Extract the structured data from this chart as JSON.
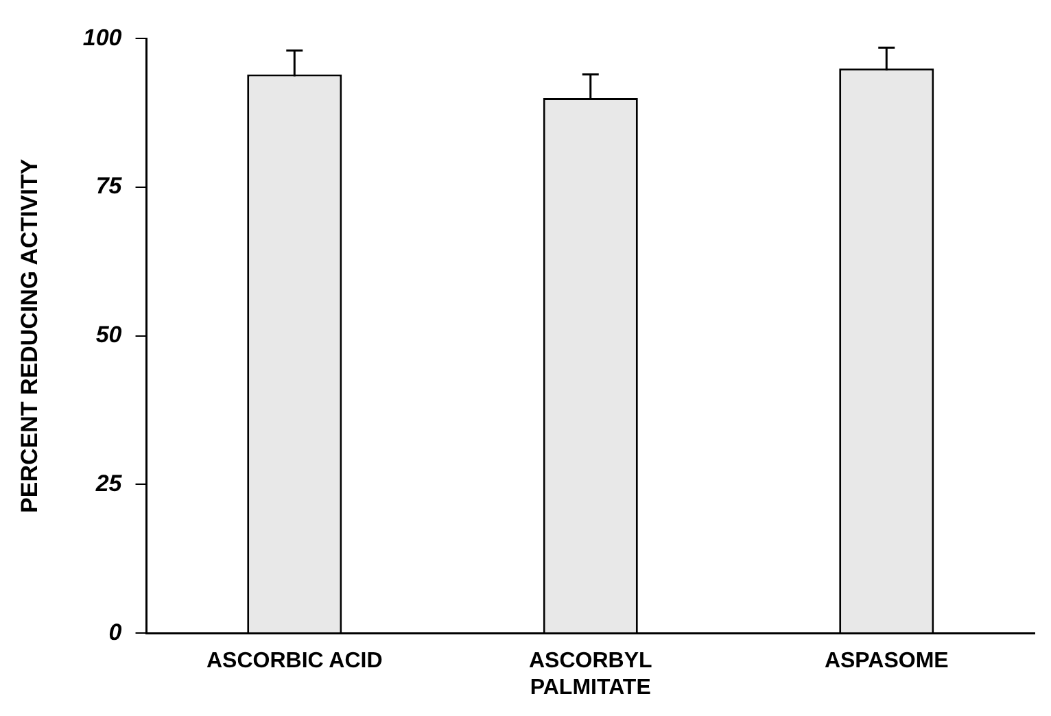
{
  "chart_data": {
    "type": "bar",
    "ylabel": "PERCENT REDUCING ACTIVITY",
    "categories": [
      "ASCORBIC ACID",
      "ASCORBYL PALMITATE",
      "ASPASOME"
    ],
    "values": [
      94,
      90,
      95
    ],
    "errors": [
      4,
      4,
      3.5
    ],
    "color": "#e8e8e8",
    "ylim": [
      0,
      100
    ],
    "yticks": [
      0,
      25,
      50,
      75,
      100
    ],
    "grid": false,
    "legend": false
  }
}
